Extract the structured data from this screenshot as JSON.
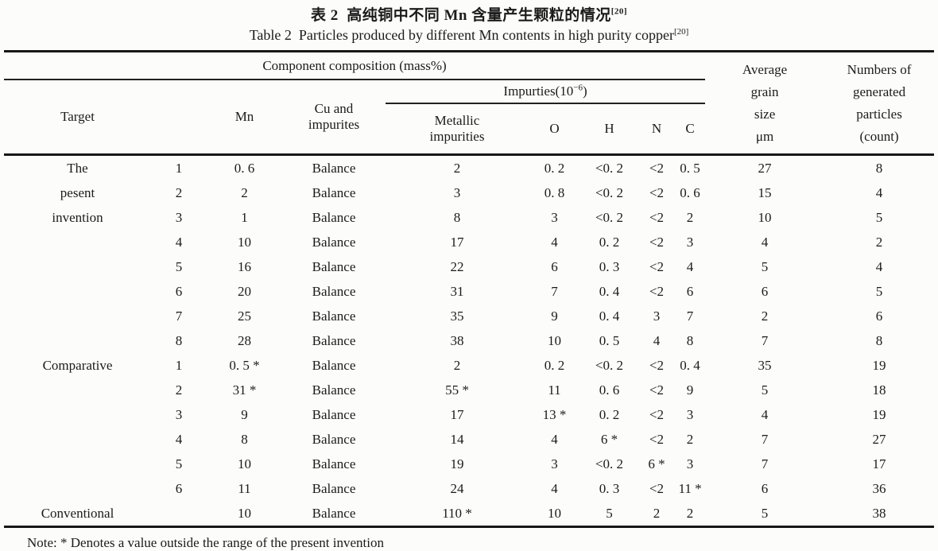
{
  "titles": {
    "zh": "表 2  高纯铜中不同 Mn 含量产生颗粒的情况",
    "zh_sup": "[20]",
    "en": "Table 2  Particles produced by different Mn contents in high purity copper",
    "en_sup": "[20]"
  },
  "table": {
    "group_header": "Component composition (mass%)",
    "impurties_pre": "Impurties(10",
    "impurties_sup": "−6",
    "impurties_post": ")",
    "col_target": "Target",
    "col_mn": "Mn",
    "col_cu": "Cu and impurites",
    "col_metallic": "Metallic impurities",
    "col_o": "O",
    "col_h": "H",
    "col_n": "N",
    "col_c": "C",
    "avg_lines": [
      "Average",
      "grain",
      "size",
      "μm"
    ],
    "num_lines": [
      "Numbers of",
      "generated",
      "particles",
      "(count)"
    ],
    "row_keys": [
      "target",
      "no",
      "mn",
      "cu",
      "metallic",
      "o",
      "h",
      "n",
      "c",
      "grain",
      "particles"
    ],
    "rows": [
      {
        "target": "The",
        "no": "1",
        "mn": "0. 6",
        "cu": "Balance",
        "metallic": "2",
        "o": "0. 2",
        "h": "<0. 2",
        "n": "<2",
        "c": "0. 5",
        "grain": "27",
        "particles": "8"
      },
      {
        "target": "pesent",
        "no": "2",
        "mn": "2",
        "cu": "Balance",
        "metallic": "3",
        "o": "0. 8",
        "h": "<0. 2",
        "n": "<2",
        "c": "0. 6",
        "grain": "15",
        "particles": "4"
      },
      {
        "target": "invention",
        "no": "3",
        "mn": "1",
        "cu": "Balance",
        "metallic": "8",
        "o": "3",
        "h": "<0. 2",
        "n": "<2",
        "c": "2",
        "grain": "10",
        "particles": "5"
      },
      {
        "target": "",
        "no": "4",
        "mn": "10",
        "cu": "Balance",
        "metallic": "17",
        "o": "4",
        "h": "0. 2",
        "n": "<2",
        "c": "3",
        "grain": "4",
        "particles": "2"
      },
      {
        "target": "",
        "no": "5",
        "mn": "16",
        "cu": "Balance",
        "metallic": "22",
        "o": "6",
        "h": "0. 3",
        "n": "<2",
        "c": "4",
        "grain": "5",
        "particles": "4"
      },
      {
        "target": "",
        "no": "6",
        "mn": "20",
        "cu": "Balance",
        "metallic": "31",
        "o": "7",
        "h": "0. 4",
        "n": "<2",
        "c": "6",
        "grain": "6",
        "particles": "5"
      },
      {
        "target": "",
        "no": "7",
        "mn": "25",
        "cu": "Balance",
        "metallic": "35",
        "o": "9",
        "h": "0. 4",
        "n": "3",
        "c": "7",
        "grain": "2",
        "particles": "6"
      },
      {
        "target": "",
        "no": "8",
        "mn": "28",
        "cu": "Balance",
        "metallic": "38",
        "o": "10",
        "h": "0. 5",
        "n": "4",
        "c": "8",
        "grain": "7",
        "particles": "8"
      },
      {
        "target": "Comparative",
        "no": "1",
        "mn": "0. 5 *",
        "cu": "Balance",
        "metallic": "2",
        "o": "0. 2",
        "h": "<0. 2",
        "n": "<2",
        "c": "0. 4",
        "grain": "35",
        "particles": "19"
      },
      {
        "target": "",
        "no": "2",
        "mn": "31 *",
        "cu": "Balance",
        "metallic": "55 *",
        "o": "11",
        "h": "0. 6",
        "n": "<2",
        "c": "9",
        "grain": "5",
        "particles": "18"
      },
      {
        "target": "",
        "no": "3",
        "mn": "9",
        "cu": "Balance",
        "metallic": "17",
        "o": "13 *",
        "h": "0. 2",
        "n": "<2",
        "c": "3",
        "grain": "4",
        "particles": "19"
      },
      {
        "target": "",
        "no": "4",
        "mn": "8",
        "cu": "Balance",
        "metallic": "14",
        "o": "4",
        "h": "6 *",
        "n": "<2",
        "c": "2",
        "grain": "7",
        "particles": "27"
      },
      {
        "target": "",
        "no": "5",
        "mn": "10",
        "cu": "Balance",
        "metallic": "19",
        "o": "3",
        "h": "<0. 2",
        "n": "6 *",
        "c": "3",
        "grain": "7",
        "particles": "17"
      },
      {
        "target": "",
        "no": "6",
        "mn": "11",
        "cu": "Balance",
        "metallic": "24",
        "o": "4",
        "h": "0. 3",
        "n": "<2",
        "c": "11 *",
        "grain": "6",
        "particles": "36"
      },
      {
        "target": "Conventional",
        "no": "",
        "mn": "10",
        "cu": "Balance",
        "metallic": "110 *",
        "o": "10",
        "h": "5",
        "n": "2",
        "c": "2",
        "grain": "5",
        "particles": "38"
      }
    ]
  },
  "note": "Note: * Denotes a value outside the range of the present invention"
}
